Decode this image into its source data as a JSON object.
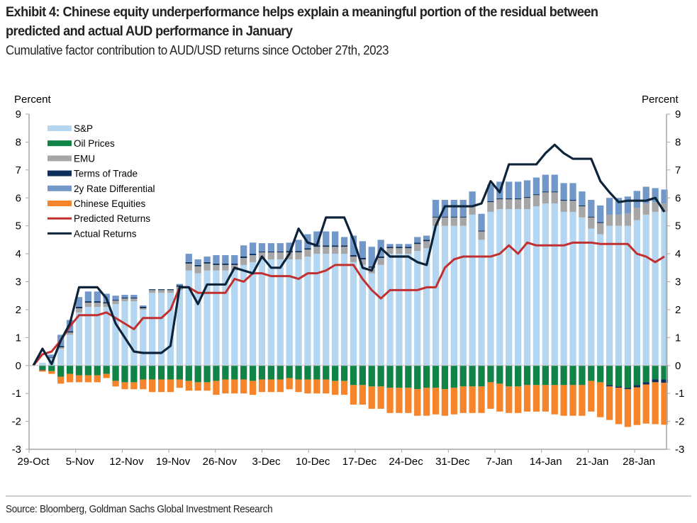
{
  "header": {
    "title": "Exhibit 4: Chinese equity underperformance helps explain a meaningful portion of the residual between predicted and actual AUD performance in January",
    "subtitle": "Cumulative factor contribution to AUD/USD returns since October 27th, 2023"
  },
  "footer": {
    "source": "Source: Bloomberg, Goldman Sachs Global Investment Research"
  },
  "colors": {
    "sp": "#b4d6f1",
    "oil": "#0f8446",
    "emu": "#a6a6a6",
    "tot": "#0d2d5a",
    "rate2y": "#7298c9",
    "china": "#f5842a",
    "predicted": "#c1302f",
    "actual": "#0c2339",
    "axis": "#a6a6a6"
  },
  "chart_data": {
    "type": "bar",
    "stacked": true,
    "title": "Cumulative factor contribution to AUD/USD returns since October 27th, 2023",
    "ylabel_left": "Percent",
    "ylabel_right": "Percent",
    "ylim": [
      -3,
      9
    ],
    "yticks": [
      -3,
      -2,
      -1,
      0,
      1,
      2,
      3,
      4,
      5,
      6,
      7,
      8,
      9
    ],
    "xtick_labels": [
      "29-Oct",
      "5-Nov",
      "12-Nov",
      "19-Nov",
      "26-Nov",
      "3-Dec",
      "10-Dec",
      "17-Dec",
      "24-Dec",
      "31-Dec",
      "7-Jan",
      "14-Jan",
      "21-Jan",
      "28-Jan"
    ],
    "grid": false,
    "legend_position": "top-left",
    "legend": [
      "S&P",
      "Oil Prices",
      "EMU",
      "Terms of Trade",
      "2y Rate Differential",
      "Chinese Equities",
      "Predicted Returns",
      "Actual Returns"
    ],
    "n_points": 70,
    "series": [
      {
        "name": "S&P",
        "kind": "bar",
        "values": [
          0,
          0.1,
          0.25,
          0.6,
          1.1,
          1.9,
          2.1,
          2.1,
          2.1,
          2.2,
          2.3,
          2.3,
          2.0,
          2.6,
          2.6,
          2.6,
          2.7,
          3.4,
          3.3,
          3.4,
          3.4,
          3.4,
          3.4,
          3.6,
          3.7,
          3.8,
          3.8,
          3.8,
          3.8,
          3.8,
          3.9,
          4.0,
          4.0,
          4.0,
          4.0,
          3.7,
          3.6,
          3.3,
          3.6,
          4.0,
          4.0,
          4.0,
          4.1,
          4.2,
          5.0,
          5.0,
          5.0,
          5.0,
          5.4,
          4.5,
          5.5,
          5.6,
          5.6,
          5.6,
          5.6,
          5.7,
          5.8,
          5.8,
          5.5,
          5.5,
          5.3,
          4.9,
          4.7,
          5.0,
          5.0,
          5.0,
          5.2,
          5.4,
          5.5,
          5.5
        ]
      },
      {
        "name": "Oil Prices",
        "kind": "bar",
        "values": [
          0,
          -0.15,
          -0.2,
          -0.4,
          -0.3,
          -0.35,
          -0.35,
          -0.35,
          -0.3,
          -0.55,
          -0.6,
          -0.6,
          -0.5,
          -0.5,
          -0.5,
          -0.5,
          -0.5,
          -0.55,
          -0.6,
          -0.6,
          -0.55,
          -0.5,
          -0.5,
          -0.5,
          -0.55,
          -0.5,
          -0.5,
          -0.5,
          -0.45,
          -0.5,
          -0.5,
          -0.5,
          -0.5,
          -0.55,
          -0.55,
          -0.7,
          -0.7,
          -0.75,
          -0.75,
          -0.8,
          -0.8,
          -0.8,
          -0.85,
          -0.8,
          -0.8,
          -0.85,
          -0.8,
          -0.75,
          -0.75,
          -0.75,
          -0.6,
          -0.65,
          -0.75,
          -0.75,
          -0.7,
          -0.7,
          -0.7,
          -0.7,
          -0.7,
          -0.7,
          -0.7,
          -0.55,
          -0.6,
          -0.7,
          -0.75,
          -0.8,
          -0.7,
          -0.6,
          -0.5,
          -0.5
        ]
      },
      {
        "name": "EMU",
        "kind": "bar",
        "values": [
          0,
          0,
          0.02,
          0.05,
          0.08,
          0.15,
          0.15,
          0.15,
          0.12,
          0.12,
          0.1,
          0.1,
          0.05,
          0.1,
          0.1,
          0.1,
          0.12,
          0.25,
          0.25,
          0.25,
          0.2,
          0.2,
          0.2,
          0.25,
          0.25,
          0.25,
          0.25,
          0.25,
          0.25,
          0.25,
          0.25,
          0.25,
          0.25,
          0.25,
          0.25,
          0.2,
          0.2,
          0.2,
          0.25,
          0.2,
          0.2,
          0.2,
          0.25,
          0.25,
          0.3,
          0.3,
          0.3,
          0.3,
          0.3,
          0.3,
          0.35,
          0.35,
          0.35,
          0.35,
          0.4,
          0.4,
          0.4,
          0.4,
          0.4,
          0.4,
          0.4,
          0.4,
          0.4,
          0.4,
          0.4,
          0.45,
          0.45,
          0.4,
          0.35,
          0.3
        ]
      },
      {
        "name": "Terms of Trade",
        "kind": "bar",
        "values": [
          0,
          -0.02,
          0.02,
          0.05,
          0.05,
          0.05,
          0.05,
          0.05,
          0.05,
          0.03,
          0.03,
          0.03,
          0.05,
          0.03,
          0.03,
          0.03,
          0.05,
          0.05,
          0.05,
          0.05,
          0.05,
          0.05,
          0.05,
          0.05,
          0.05,
          0.03,
          0.03,
          0.03,
          0.05,
          0.05,
          0.05,
          0.05,
          0.05,
          0.05,
          0.05,
          0.05,
          0.05,
          0.05,
          0.05,
          0.05,
          0.05,
          0.05,
          0.05,
          0.05,
          0.03,
          0.03,
          0.03,
          0.03,
          0.03,
          0.03,
          0.03,
          0.03,
          0.03,
          0.03,
          0.03,
          0.03,
          0.03,
          0.03,
          0.03,
          0.03,
          0.03,
          0.03,
          0.03,
          -0.05,
          -0.05,
          -0.05,
          -0.08,
          -0.08,
          -0.1,
          -0.12
        ]
      },
      {
        "name": "2y Rate Differential",
        "kind": "bar",
        "values": [
          0,
          0,
          0.1,
          0.4,
          0.4,
          0.35,
          0.35,
          0.35,
          0.3,
          0.15,
          0.1,
          0.1,
          0.05,
          0.0,
          0.0,
          0.0,
          0.05,
          0.3,
          0.2,
          0.2,
          0.3,
          0.3,
          0.3,
          0.4,
          0.4,
          0.3,
          0.3,
          0.3,
          0.3,
          0.4,
          0.5,
          0.5,
          0.5,
          0.5,
          0.3,
          0.7,
          0.6,
          0.7,
          0.6,
          0.1,
          0.1,
          0.1,
          0.2,
          0.15,
          0.6,
          0.6,
          0.6,
          0.6,
          0.5,
          0.6,
          0.6,
          0.6,
          0.6,
          0.6,
          0.6,
          0.6,
          0.6,
          0.6,
          0.6,
          0.6,
          0.5,
          0.6,
          0.6,
          0.6,
          0.6,
          0.6,
          0.6,
          0.6,
          0.5,
          0.5
        ]
      },
      {
        "name": "Chinese Equities",
        "kind": "bar",
        "values": [
          0,
          -0.05,
          -0.1,
          -0.25,
          -0.3,
          -0.25,
          -0.25,
          -0.25,
          -0.15,
          -0.2,
          -0.25,
          -0.25,
          -0.35,
          -0.45,
          -0.45,
          -0.45,
          -0.3,
          -0.35,
          -0.3,
          -0.3,
          -0.5,
          -0.5,
          -0.5,
          -0.5,
          -0.5,
          -0.45,
          -0.45,
          -0.45,
          -0.4,
          -0.45,
          -0.5,
          -0.5,
          -0.5,
          -0.5,
          -0.5,
          -0.7,
          -0.7,
          -0.8,
          -0.8,
          -0.9,
          -0.9,
          -0.9,
          -0.95,
          -1.0,
          -0.95,
          -0.95,
          -0.95,
          -0.95,
          -0.95,
          -0.95,
          -0.95,
          -1.0,
          -0.95,
          -0.95,
          -0.95,
          -0.95,
          -0.95,
          -1.05,
          -1.1,
          -1.1,
          -1.1,
          -1.1,
          -1.25,
          -1.2,
          -1.3,
          -1.35,
          -1.35,
          -1.4,
          -1.5,
          -1.5
        ]
      },
      {
        "name": "Predicted Returns",
        "kind": "line",
        "values": [
          0,
          0.4,
          0.5,
          0.9,
          1.4,
          1.8,
          1.8,
          1.8,
          1.9,
          1.7,
          1.5,
          1.3,
          1.7,
          1.7,
          1.7,
          2.0,
          2.8,
          2.8,
          2.6,
          2.6,
          2.6,
          2.6,
          3.1,
          3.0,
          3.3,
          3.3,
          3.2,
          3.2,
          3.2,
          3.1,
          3.3,
          3.3,
          3.4,
          3.6,
          3.6,
          3.6,
          3.1,
          2.7,
          2.4,
          2.7,
          2.7,
          2.7,
          2.7,
          2.8,
          2.8,
          3.5,
          3.8,
          3.9,
          3.9,
          3.9,
          3.9,
          4.0,
          4.3,
          4.0,
          4.4,
          4.3,
          4.3,
          4.3,
          4.3,
          4.4,
          4.4,
          4.4,
          4.35,
          4.35,
          4.35,
          4.35,
          4.0,
          3.9,
          3.7,
          3.9
        ]
      },
      {
        "name": "Actual Returns",
        "kind": "line",
        "values": [
          0,
          0.6,
          0.05,
          0.9,
          1.5,
          2.8,
          2.8,
          2.8,
          2.4,
          1.5,
          1.0,
          0.5,
          0.45,
          0.45,
          0.45,
          0.7,
          2.8,
          2.8,
          2.2,
          2.9,
          2.9,
          2.9,
          3.5,
          3.4,
          3.3,
          3.9,
          3.5,
          3.5,
          4.0,
          4.9,
          4.4,
          4.3,
          5.3,
          5.3,
          5.3,
          4.5,
          3.5,
          3.4,
          4.2,
          3.9,
          3.9,
          3.9,
          3.7,
          3.6,
          5.0,
          5.7,
          5.7,
          5.7,
          5.7,
          5.8,
          6.6,
          6.2,
          7.2,
          7.2,
          7.2,
          7.2,
          7.6,
          7.9,
          7.6,
          7.4,
          7.4,
          7.4,
          6.6,
          6.2,
          5.85,
          5.9,
          5.9,
          5.9,
          6.0,
          5.5
        ]
      }
    ]
  }
}
